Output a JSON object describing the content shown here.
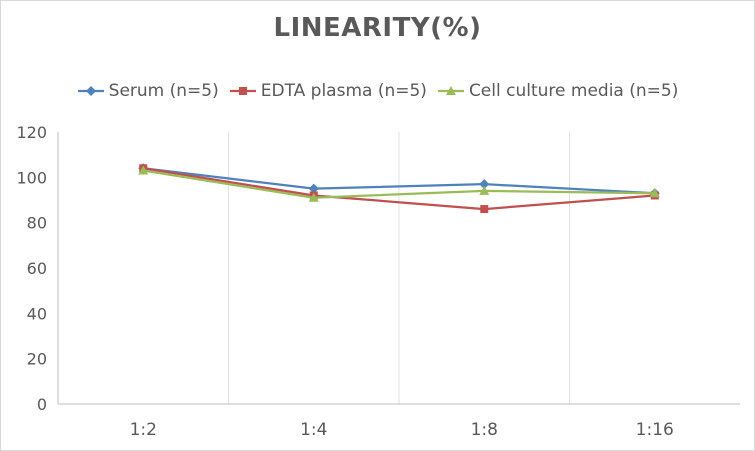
{
  "chart_data": {
    "type": "line",
    "title": "LINEARITY(%)",
    "categories": [
      "1:2",
      "1:4",
      "1:8",
      "1:16"
    ],
    "ylim": [
      0,
      120
    ],
    "yticks": [
      0,
      20,
      40,
      60,
      80,
      100,
      120
    ],
    "grid": "vertical category dividers",
    "legend_position": "top",
    "series": [
      {
        "name": "Serum (n=5)",
        "values": [
          104,
          95,
          97,
          93
        ],
        "color": "#4f81bd",
        "marker": "diamond"
      },
      {
        "name": "EDTA plasma (n=5)",
        "values": [
          104,
          92,
          86,
          92
        ],
        "color": "#c0504d",
        "marker": "square"
      },
      {
        "name": "Cell culture media (n=5)",
        "values": [
          103,
          91,
          94,
          93
        ],
        "color": "#9bbb59",
        "marker": "triangle"
      }
    ]
  }
}
